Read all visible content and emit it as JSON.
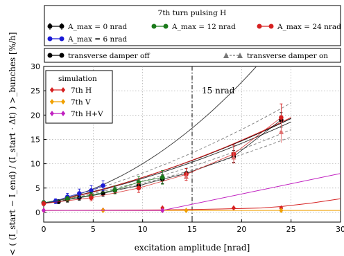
{
  "chart_data": {
    "type": "line",
    "title": "7th turn pulsing H",
    "xlabel": "excitation amplitude [nrad]",
    "ylabel": "< ( (I_start − I_end) / (I_start · Δt) ) >_bunches [%/h]",
    "xlim": [
      0,
      30
    ],
    "ylim": [
      -2,
      30
    ],
    "x_ticks": [
      0,
      5,
      10,
      15,
      20,
      25,
      30
    ],
    "y_ticks": [
      0,
      5,
      10,
      15,
      20,
      25,
      30
    ],
    "grid": true,
    "annotations": [
      {
        "text": "15 nrad",
        "x": 15,
        "style": "dash-dot vertical line"
      }
    ],
    "legend_top": {
      "title": "7th turn pulsing H",
      "entries": [
        {
          "label": "A_max = 0 nrad",
          "color": "#000000"
        },
        {
          "label": "A_max = 12 nrad",
          "color": "#1a7a1a"
        },
        {
          "label": "A_max = 24 nrad",
          "color": "#d62020"
        },
        {
          "label": "A_max = 6 nrad",
          "color": "#1a1ad6"
        }
      ]
    },
    "legend_damper": {
      "entries": [
        {
          "label": "transverse damper off",
          "style": "solid"
        },
        {
          "label": "transverse damper on",
          "style": "dashed"
        }
      ]
    },
    "legend_sim": {
      "title": "simulation",
      "entries": [
        {
          "label": "7th H",
          "color": "#d62020"
        },
        {
          "label": "7th V",
          "color": "#f0a000"
        },
        {
          "label": "7th H+V",
          "color": "#c020c0"
        }
      ]
    },
    "series": [
      {
        "name": "A_max = 0 nrad",
        "color": "#000000",
        "x": [
          0,
          1.5,
          2.4,
          3.6,
          4.8,
          6,
          7.2,
          9.6,
          12,
          14.4,
          19.2,
          24
        ],
        "y": [
          2.0,
          2.2,
          2.6,
          3.0,
          3.4,
          3.9,
          4.5,
          5.5,
          6.8,
          8.0,
          11.5,
          19.0
        ],
        "err": [
          0.4,
          0.4,
          0.5,
          0.5,
          0.6,
          0.6,
          0.6,
          0.7,
          0.9,
          1.0,
          1.2,
          1.5
        ]
      },
      {
        "name": "A_max = 6 nrad",
        "color": "#1a1ad6",
        "x": [
          0,
          1.2,
          2.4,
          3.6,
          4.8,
          6
        ],
        "y": [
          2.0,
          2.3,
          3.2,
          3.9,
          4.5,
          5.5
        ],
        "err": [
          0.4,
          0.5,
          0.7,
          0.9,
          1.0,
          1.0
        ]
      },
      {
        "name": "A_max = 12 nrad",
        "color": "#1a7a1a",
        "x": [
          0,
          2.4,
          4.8,
          7.2,
          9.6,
          12
        ],
        "y": [
          2.0,
          2.8,
          3.5,
          4.6,
          6.2,
          7.2
        ],
        "err": [
          0.4,
          0.5,
          0.6,
          0.8,
          1.2,
          1.4
        ]
      },
      {
        "name": "A_max = 24 nrad",
        "color": "#d62020",
        "x": [
          0,
          4.8,
          9.6,
          14.4,
          19.2,
          24
        ],
        "y": [
          1.8,
          3.0,
          5.0,
          7.8,
          12.0,
          19.5
        ],
        "err": [
          0.4,
          0.6,
          0.9,
          1.2,
          1.8,
          2.8
        ]
      }
    ],
    "fits": [
      {
        "color": "#000000",
        "x": [
          0,
          25
        ],
        "y": [
          1.9,
          19.3
        ],
        "style": "solid"
      },
      {
        "color": "#333333",
        "x": [
          0,
          25
        ],
        "y": [
          1.9,
          18.6
        ],
        "style": "solid"
      },
      {
        "color": "#444444",
        "x": [
          0,
          21.5
        ],
        "y": [
          1.8,
          30.0
        ],
        "style": "solid"
      },
      {
        "color": "#888888",
        "x": [
          0,
          25
        ],
        "y": [
          1.8,
          22.5
        ],
        "style": "dashed"
      },
      {
        "color": "#888888",
        "x": [
          0,
          25
        ],
        "y": [
          1.8,
          17.0
        ],
        "style": "dashed"
      },
      {
        "color": "#888888",
        "x": [
          0,
          25
        ],
        "y": [
          1.8,
          15.5
        ],
        "style": "dashed"
      },
      {
        "color": "#d62020",
        "x": [
          0,
          25
        ],
        "y": [
          1.8,
          19.5
        ],
        "style": "solid"
      }
    ],
    "damper_on_points": [
      {
        "x": 19.2,
        "y": 11.3,
        "err": 1.3
      },
      {
        "x": 24,
        "y": 16.5,
        "err": 2.2
      },
      {
        "x": 14.4,
        "y": 7.3,
        "err": 0.9
      }
    ],
    "sim_curves": [
      {
        "name": "7th H",
        "color": "#d62020",
        "x": [
          0,
          6,
          12,
          18,
          22,
          24,
          27,
          30
        ],
        "y": [
          0.4,
          0.45,
          0.5,
          0.7,
          0.9,
          1.2,
          1.9,
          2.8
        ],
        "markers_x": [
          0,
          6,
          12,
          19.2,
          24
        ],
        "markers_y": [
          0.4,
          0.45,
          0.9,
          0.9,
          0.9
        ]
      },
      {
        "name": "7th V",
        "color": "#f0a000",
        "x": [
          0,
          30
        ],
        "y": [
          0.4,
          0.4
        ],
        "markers_x": [
          0,
          6,
          12,
          14.4,
          24
        ],
        "markers_y": [
          0.4,
          0.4,
          0.4,
          0.4,
          0.4
        ]
      },
      {
        "name": "7th H+V",
        "color": "#c020c0",
        "x": [
          0,
          12,
          30
        ],
        "y": [
          0.4,
          0.4,
          8.0
        ],
        "markers_x": [
          0,
          12
        ],
        "markers_y": [
          0.4,
          0.4
        ]
      }
    ]
  }
}
